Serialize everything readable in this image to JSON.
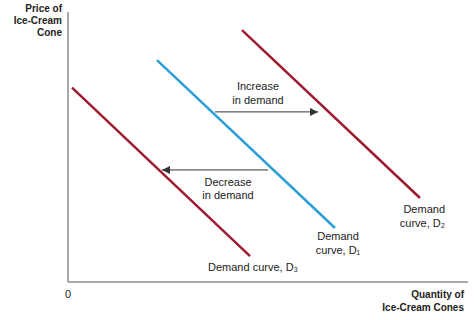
{
  "chart_data": {
    "type": "line",
    "x_label": "Quantity of Ice-Cream Cones",
    "y_label": "Price of Ice-Cream Cone",
    "xlim": [
      0,
      100
    ],
    "ylim": [
      0,
      100
    ],
    "xticks": [
      0
    ],
    "yticks": [],
    "tick_labels": "x",
    "grid": false,
    "series": [
      {
        "name": "Demand curve, D₃",
        "color": "#9e1b32",
        "x": [
          1,
          45.5
        ],
        "values": [
          72,
          9.6
        ]
      },
      {
        "name": "Demand curve, D₁",
        "color": "#2b9fd9",
        "x": [
          22.25,
          66.75
        ],
        "values": [
          82.2,
          20
        ]
      },
      {
        "name": "Demand curve, D₂",
        "color": "#9e1b32",
        "x": [
          43.5,
          88
        ],
        "values": [
          93.3,
          31.1
        ]
      }
    ],
    "annotations": [
      "Increase in demand",
      "Decrease in demand"
    ]
  }
}
